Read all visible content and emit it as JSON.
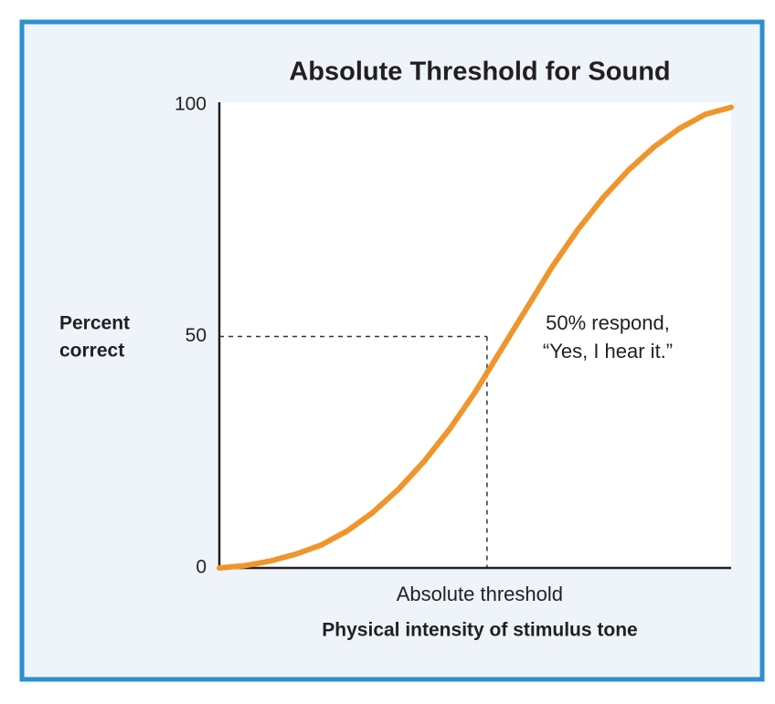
{
  "chart_data": {
    "type": "line",
    "title": "Absolute Threshold for Sound",
    "ylabel": [
      "Percent",
      "correct"
    ],
    "xlabel": "Physical intensity of stimulus tone",
    "x": [
      0,
      5,
      10,
      15,
      20,
      25,
      30,
      35,
      40,
      45,
      50,
      55,
      60,
      65,
      70,
      75,
      80,
      85,
      90,
      95,
      100
    ],
    "series": [
      {
        "color": "#f0952a",
        "values": [
          0,
          0.5,
          1.5,
          3,
          5,
          8,
          12,
          17,
          23,
          30,
          38,
          47,
          56,
          65,
          73,
          80,
          86,
          91,
          95,
          98,
          99.5
        ]
      }
    ],
    "xlim": [
      0,
      100
    ],
    "ylim": [
      0,
      100
    ],
    "yticks": [
      0,
      50,
      100
    ],
    "grid": false,
    "threshold": {
      "x": 52.3,
      "y": 50,
      "label": "Absolute threshold"
    },
    "annotation": [
      "50% respond,",
      "“Yes, I hear it.”"
    ]
  }
}
